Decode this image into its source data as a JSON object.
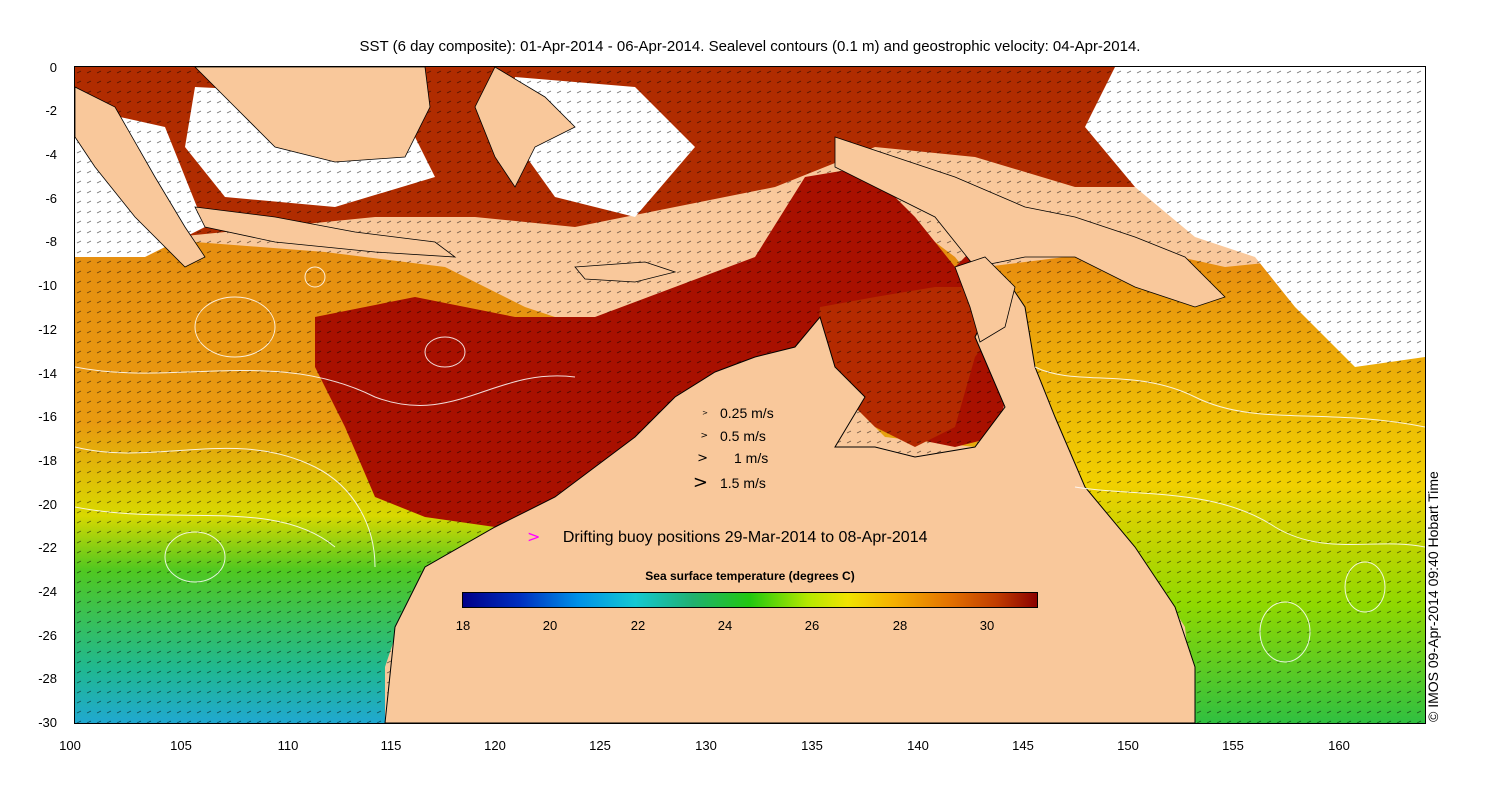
{
  "title": "SST (6 day composite): 01-Apr-2014 - 06-Apr-2014. Sealevel contours (0.1 m) and geostrophic velocity: 04-Apr-2014.",
  "map": {
    "lon_range": [
      100,
      164
    ],
    "lat_range": [
      -30,
      0
    ],
    "x_ticks": [
      "100",
      "105",
      "110",
      "115",
      "120",
      "125",
      "130",
      "135",
      "140",
      "145",
      "150",
      "155",
      "160"
    ],
    "y_ticks": [
      "0",
      "-2",
      "-4",
      "-6",
      "-8",
      "-10",
      "-12",
      "-14",
      "-16",
      "-18",
      "-20",
      "-22",
      "-24",
      "-26",
      "-28",
      "-30"
    ],
    "colors": {
      "land": "#f9c89b",
      "no_data": "#ffffff",
      "contour": "#ffffff",
      "vector": "#000000",
      "buoy": "#ff00ff"
    }
  },
  "velocity_legend": [
    {
      "label": "0.25 m/s",
      "size": 0.25
    },
    {
      "label": "0.5 m/s",
      "size": 0.5
    },
    {
      "label": "1 m/s",
      "size": 1
    },
    {
      "label": "1.5 m/s",
      "size": 1.5
    }
  ],
  "buoy_legend": {
    "marker": ">",
    "label": "Drifting buoy positions 29-Mar-2014 to 08-Apr-2014"
  },
  "colorbar": {
    "title": "Sea surface temperature (degrees C)",
    "range": [
      18,
      31.2
    ],
    "ticks": [
      "18",
      "20",
      "22",
      "24",
      "26",
      "28",
      "30"
    ]
  },
  "credit": "© IMOS 09-Apr-2014 09:40 Hobart Time"
}
